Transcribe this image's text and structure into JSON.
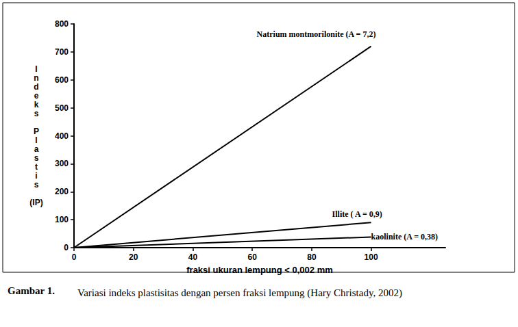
{
  "chart_data": {
    "type": "line",
    "title": "Gambar 1.",
    "subtitle": "Variasi indeks plastisitas dengan persen fraksi lempung (Hary Christady, 2002)",
    "x_label": "fraksi ukuran lempung < 0,002 mm",
    "y_label": "Indeks Plastis (IP)",
    "x": [
      0,
      100
    ],
    "series": [
      {
        "name": "Natrium montmorilonite (A = 7,2)",
        "color": "#000000",
        "values": [
          0,
          720
        ]
      },
      {
        "name": "Illite ( A = 0,9)",
        "color": "#000000",
        "values": [
          0,
          90
        ]
      },
      {
        "name": "kaolinite (A = 0,38)",
        "color": "#000000",
        "values": [
          0,
          38
        ]
      }
    ],
    "xlim": [
      0,
      125
    ],
    "xticks": [
      0,
      20,
      40,
      60,
      80,
      100
    ],
    "ylim": [
      0,
      800
    ],
    "yticks": [
      0,
      100,
      200,
      300,
      400,
      500,
      600,
      700,
      800
    ],
    "grid": false,
    "legend": false
  }
}
